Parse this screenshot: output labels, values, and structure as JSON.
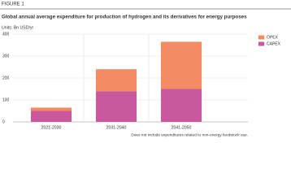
{
  "figure_label": "FIGURE 1",
  "chart_data": {
    "type": "stacked-bar",
    "title": "Global annual average expenditure for production of hydrogen and its derivatives for energy purposes",
    "subtitle": "Units: Bn USD/yr",
    "categories": [
      "2021-2030",
      "2031-2040",
      "2041-2050"
    ],
    "series": [
      {
        "name": "CAPEX",
        "color": "#c9589c",
        "values": [
          50,
          140,
          150
        ]
      },
      {
        "name": "OPEX",
        "color": "#f58b62",
        "values": [
          15,
          100,
          215
        ]
      }
    ],
    "ylim": [
      0,
      400
    ],
    "yticks": [
      0,
      100,
      200,
      300,
      400
    ],
    "grid": true,
    "legend": "top-right",
    "note": "Does not include expenditures related to non-energy feedstock use."
  }
}
